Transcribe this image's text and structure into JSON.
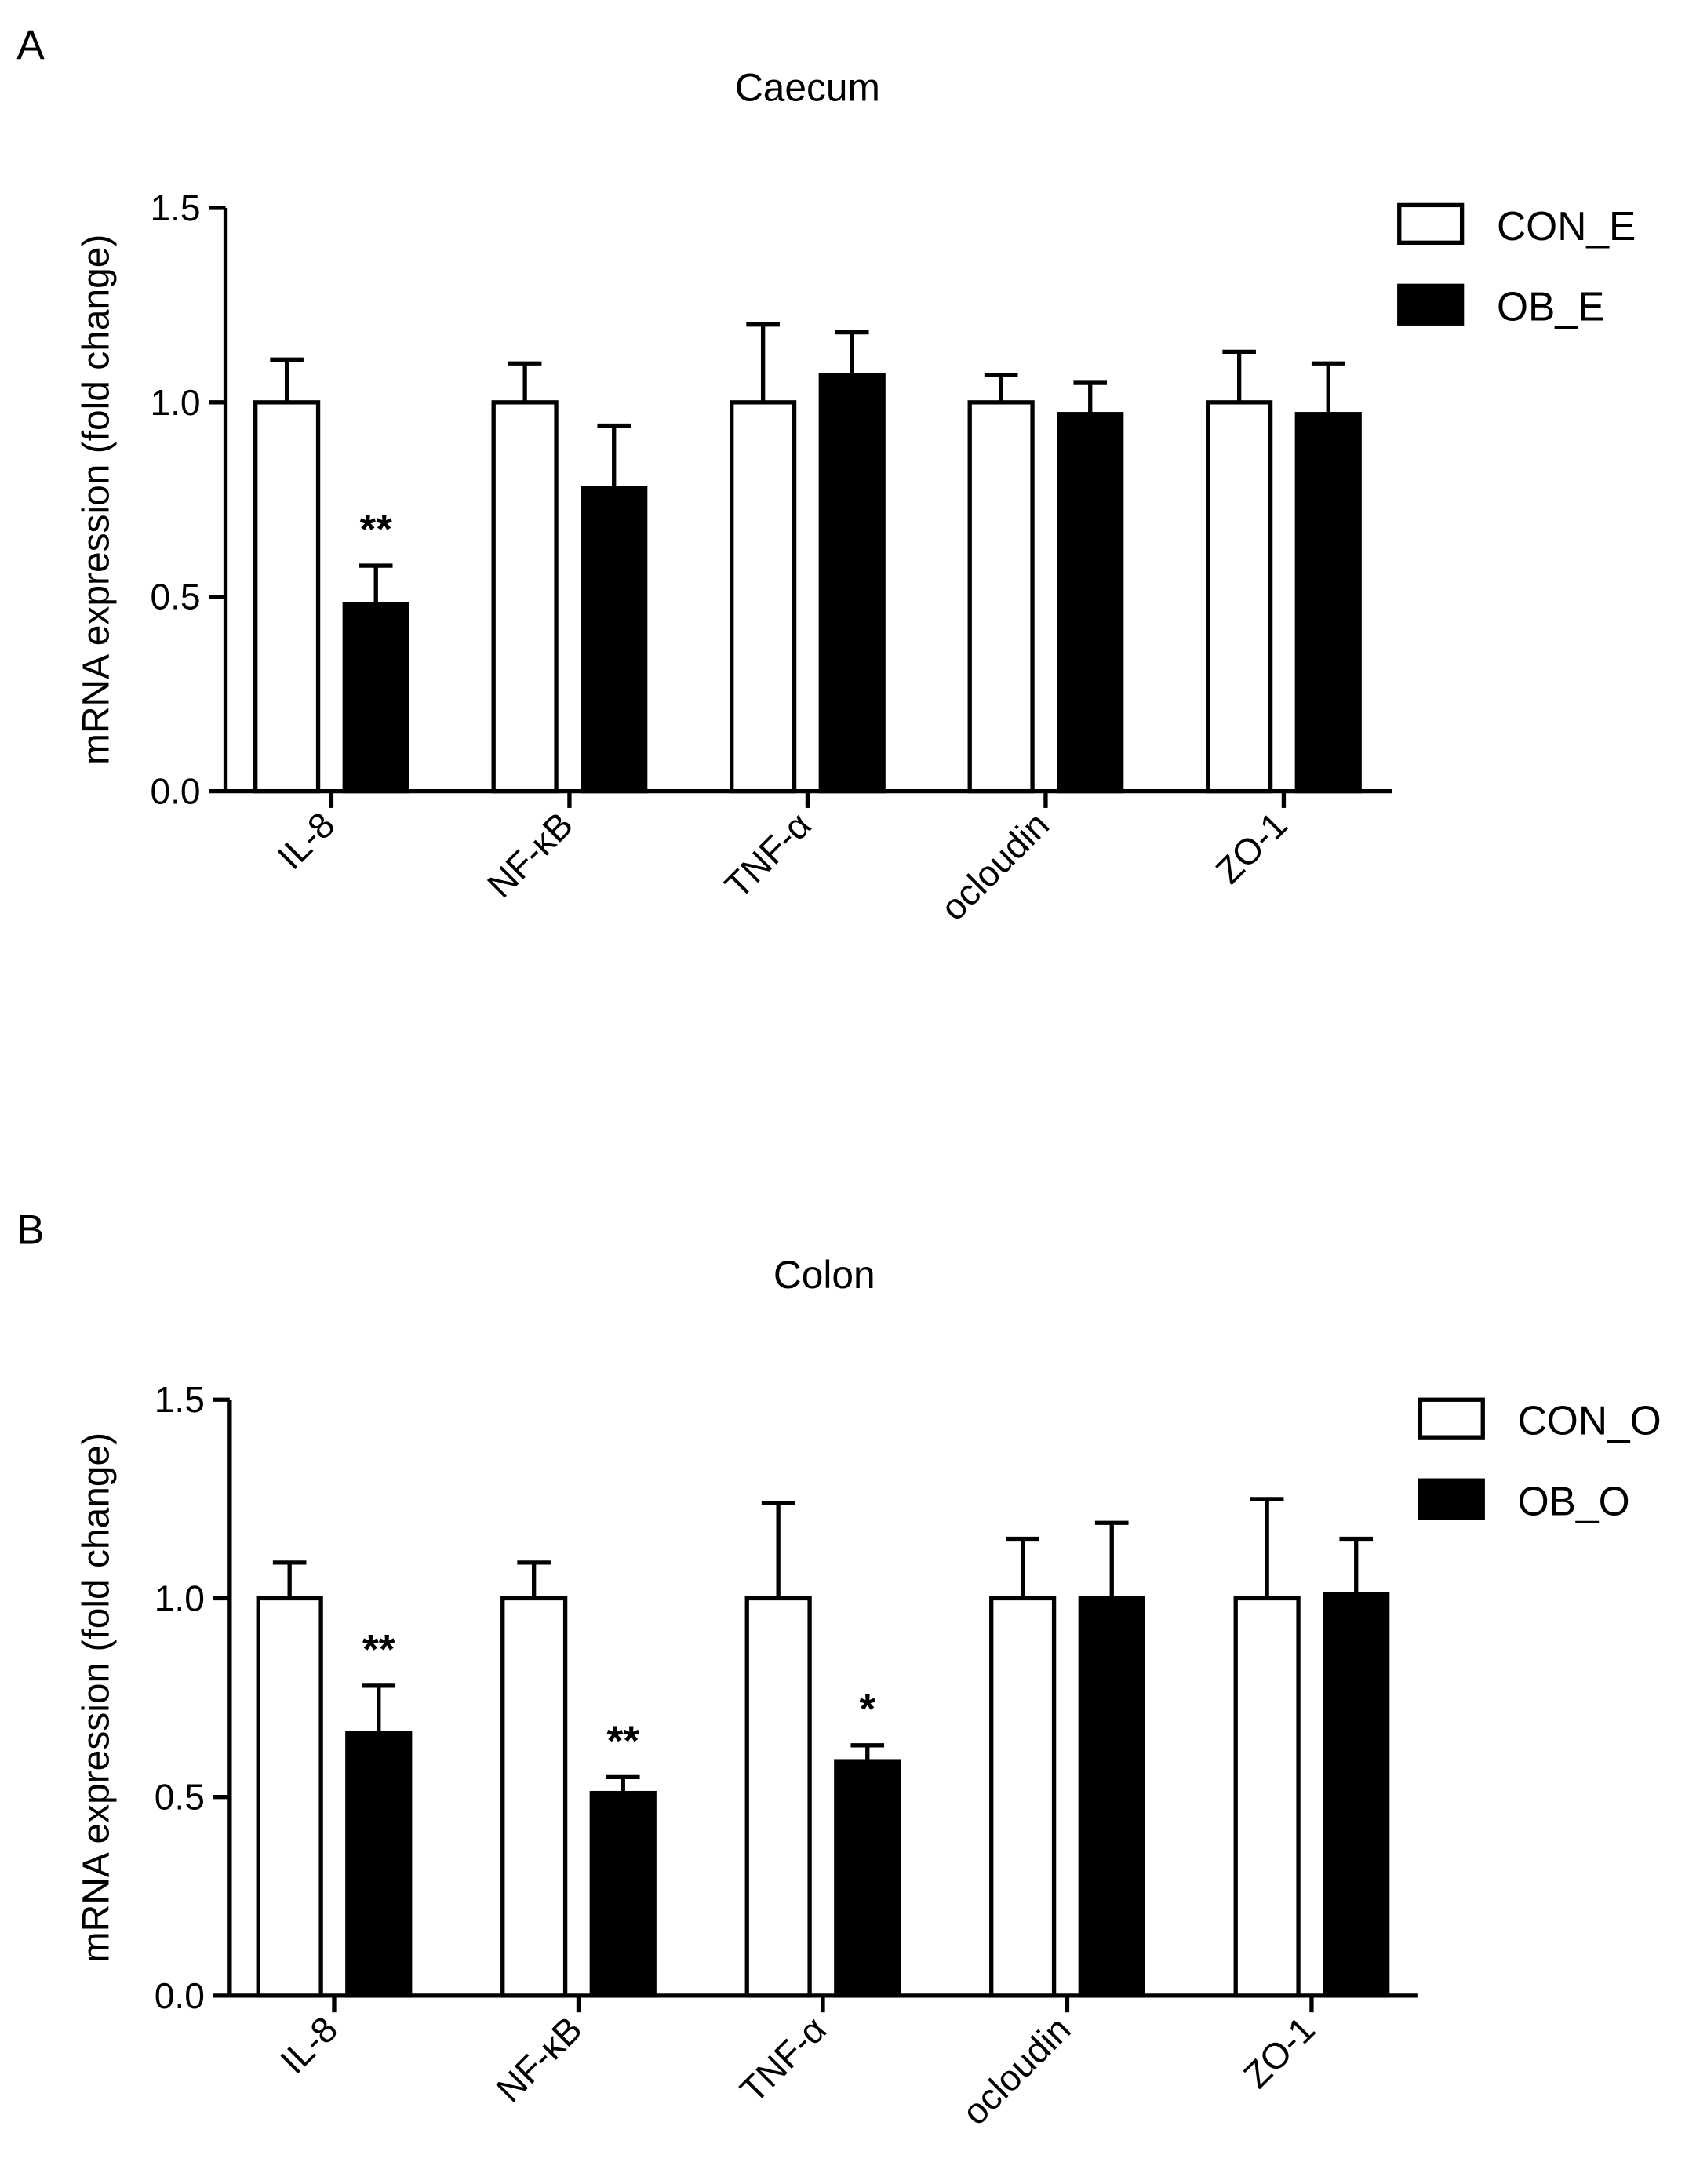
{
  "chart_data": [
    {
      "type": "bar",
      "panel": "A",
      "title": "Caecum",
      "y_label": "mRNA expression (fold change)",
      "categories": [
        "IL-8",
        "NF-κB",
        "TNF-α",
        "ocloudin",
        "ZO-1"
      ],
      "series": [
        {
          "name": "CON_E",
          "color": "#ffffff",
          "values": [
            1.0,
            1.0,
            1.0,
            1.0,
            1.0
          ],
          "errors": [
            0.11,
            0.1,
            0.2,
            0.07,
            0.13
          ]
        },
        {
          "name": "OB_E",
          "color": "#000000",
          "values": [
            0.48,
            0.78,
            1.07,
            0.97,
            0.97
          ],
          "errors": [
            0.1,
            0.16,
            0.11,
            0.08,
            0.13
          ],
          "labels": [
            "**",
            null,
            null,
            null,
            null
          ]
        }
      ],
      "ylim": [
        0,
        1.5
      ],
      "yticks": [
        {
          "value": 0,
          "label": "0.0"
        },
        {
          "value": 0.5,
          "label": "0.5"
        },
        {
          "value": 1,
          "label": "1.0"
        },
        {
          "value": 1.5,
          "label": "1.5"
        }
      ],
      "legend": "upper right"
    },
    {
      "type": "bar",
      "panel": "B",
      "title": "Colon",
      "y_label": "mRNA expression (fold change)",
      "categories": [
        "IL-8",
        "NF-κB",
        "TNF-α",
        "ocloudin",
        "ZO-1"
      ],
      "series": [
        {
          "name": "CON_O",
          "color": "#ffffff",
          "values": [
            1.0,
            1.0,
            1.0,
            1.0,
            1.0
          ],
          "errors": [
            0.09,
            0.09,
            0.24,
            0.15,
            0.25
          ]
        },
        {
          "name": "OB_O",
          "color": "#000000",
          "values": [
            0.66,
            0.51,
            0.59,
            1.0,
            1.01
          ],
          "errors": [
            0.12,
            0.04,
            0.04,
            0.19,
            0.14
          ],
          "labels": [
            "**",
            "**",
            "*",
            null,
            null
          ]
        }
      ],
      "ylim": [
        0,
        1.5
      ],
      "yticks": [
        {
          "value": 0,
          "label": "0.0"
        },
        {
          "value": 0.5,
          "label": "0.5"
        },
        {
          "value": 1,
          "label": "1.0"
        },
        {
          "value": 1.5,
          "label": "1.5"
        }
      ],
      "legend": "upper right"
    }
  ]
}
